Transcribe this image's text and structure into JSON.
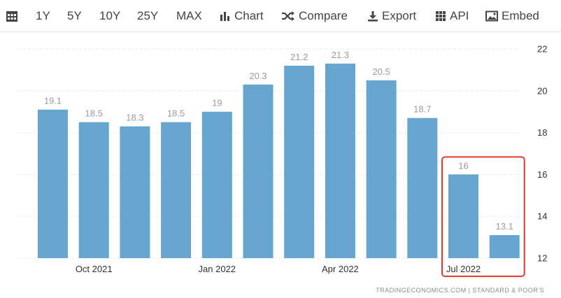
{
  "toolbar": {
    "items": [
      {
        "label": "",
        "icon": "calendar-icon"
      },
      {
        "label": "1Y"
      },
      {
        "label": "5Y"
      },
      {
        "label": "10Y"
      },
      {
        "label": "25Y"
      },
      {
        "label": "MAX"
      },
      {
        "label": "Chart",
        "icon": "bar-chart-icon"
      },
      {
        "label": "Compare",
        "icon": "shuffle-icon"
      },
      {
        "label": "Export",
        "icon": "download-icon"
      },
      {
        "label": "API",
        "icon": "grid-icon"
      },
      {
        "label": "Embed",
        "icon": "image-icon"
      }
    ]
  },
  "source": "TRADINGECONOMICS.COM  |  STANDARD & POOR'S",
  "colors": {
    "bar": "#66a5cf",
    "highlight": "#e53b2c"
  },
  "chart_data": {
    "type": "bar",
    "categories": [
      "",
      "Oct 2021",
      "",
      "",
      "Jan 2022",
      "",
      "",
      "Apr 2022",
      "",
      "",
      "Jul 2022",
      ""
    ],
    "values": [
      19.1,
      18.5,
      18.3,
      18.5,
      19,
      20.3,
      21.2,
      21.3,
      20.5,
      18.7,
      16,
      13.1
    ],
    "data_labels": [
      "19.1",
      "18.5",
      "18.3",
      "18.5",
      "19",
      "20.3",
      "21.2",
      "21.3",
      "20.5",
      "18.7",
      "16",
      "13.1"
    ],
    "x_tick_labels": [
      "Oct 2021",
      "Jan 2022",
      "Apr 2022",
      "Jul 2022"
    ],
    "y_ticks": [
      12,
      14,
      16,
      18,
      20,
      22
    ],
    "ylim": [
      12,
      22
    ],
    "grid": true,
    "y_axis_side": "right",
    "highlight_last_n": 2,
    "title": "",
    "xlabel": "",
    "ylabel": ""
  }
}
